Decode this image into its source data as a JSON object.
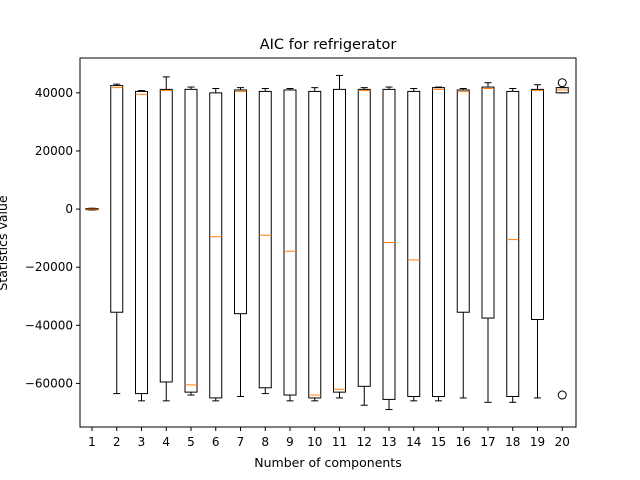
{
  "chart_data": {
    "type": "box",
    "title": "AIC for refrigerator",
    "xlabel": "Number of components",
    "ylabel": "Statistics value",
    "ylim": [
      -75000,
      52000
    ],
    "yticks": [
      -60000,
      -40000,
      -20000,
      0,
      20000,
      40000
    ],
    "ytick_labels": [
      "−60000",
      "−40000",
      "−20000",
      "0",
      "20000",
      "40000"
    ],
    "categories": [
      "1",
      "2",
      "3",
      "4",
      "5",
      "6",
      "7",
      "8",
      "9",
      "10",
      "11",
      "12",
      "13",
      "14",
      "15",
      "16",
      "17",
      "18",
      "19",
      "20"
    ],
    "colors": {
      "box": "#000000",
      "median": "#ff7f0e",
      "background": "#ffffff"
    },
    "boxes": [
      {
        "whislo": -300,
        "q1": -200,
        "med": 0,
        "q3": 200,
        "whishi": 300,
        "fliers": []
      },
      {
        "whislo": -63500,
        "q1": -35500,
        "med": 41800,
        "q3": 42500,
        "whishi": 43000,
        "fliers": []
      },
      {
        "whislo": -66000,
        "q1": -63500,
        "med": 39500,
        "q3": 40500,
        "whishi": 40800,
        "fliers": []
      },
      {
        "whislo": -66000,
        "q1": -59500,
        "med": 40800,
        "q3": 41200,
        "whishi": 45500,
        "fliers": []
      },
      {
        "whislo": -64000,
        "q1": -63000,
        "med": -60500,
        "q3": 41200,
        "whishi": 42000,
        "fliers": []
      },
      {
        "whislo": -66000,
        "q1": -65000,
        "med": -9500,
        "q3": 40000,
        "whishi": 41500,
        "fliers": []
      },
      {
        "whislo": -64500,
        "q1": -36000,
        "med": 40500,
        "q3": 41000,
        "whishi": 41800,
        "fliers": []
      },
      {
        "whislo": -63500,
        "q1": -61500,
        "med": -9000,
        "q3": 40500,
        "whishi": 41500,
        "fliers": []
      },
      {
        "whislo": -66000,
        "q1": -64000,
        "med": -14500,
        "q3": 41000,
        "whishi": 41500,
        "fliers": []
      },
      {
        "whislo": -66000,
        "q1": -65000,
        "med": -64000,
        "q3": 40500,
        "whishi": 41800,
        "fliers": []
      },
      {
        "whislo": -65000,
        "q1": -63000,
        "med": -62000,
        "q3": 41200,
        "whishi": 46000,
        "fliers": []
      },
      {
        "whislo": -67500,
        "q1": -61000,
        "med": 40800,
        "q3": 41200,
        "whishi": 41800,
        "fliers": []
      },
      {
        "whislo": -69000,
        "q1": -65500,
        "med": -11500,
        "q3": 41200,
        "whishi": 42000,
        "fliers": []
      },
      {
        "whislo": -66000,
        "q1": -64500,
        "med": -17500,
        "q3": 40500,
        "whishi": 41500,
        "fliers": []
      },
      {
        "whislo": -66000,
        "q1": -64500,
        "med": 41200,
        "q3": 41800,
        "whishi": 42000,
        "fliers": []
      },
      {
        "whislo": -65000,
        "q1": -35500,
        "med": 40500,
        "q3": 41000,
        "whishi": 41500,
        "fliers": []
      },
      {
        "whislo": -66500,
        "q1": -37500,
        "med": 41500,
        "q3": 42000,
        "whishi": 43500,
        "fliers": []
      },
      {
        "whislo": -66500,
        "q1": -64500,
        "med": -10500,
        "q3": 40500,
        "whishi": 41500,
        "fliers": []
      },
      {
        "whislo": -65000,
        "q1": -38000,
        "med": 40800,
        "q3": 41200,
        "whishi": 42800,
        "fliers": []
      },
      {
        "whislo": 40000,
        "q1": 40000,
        "med": 41000,
        "q3": 41800,
        "whishi": 41800,
        "fliers": [
          43500,
          -64000
        ]
      }
    ]
  }
}
